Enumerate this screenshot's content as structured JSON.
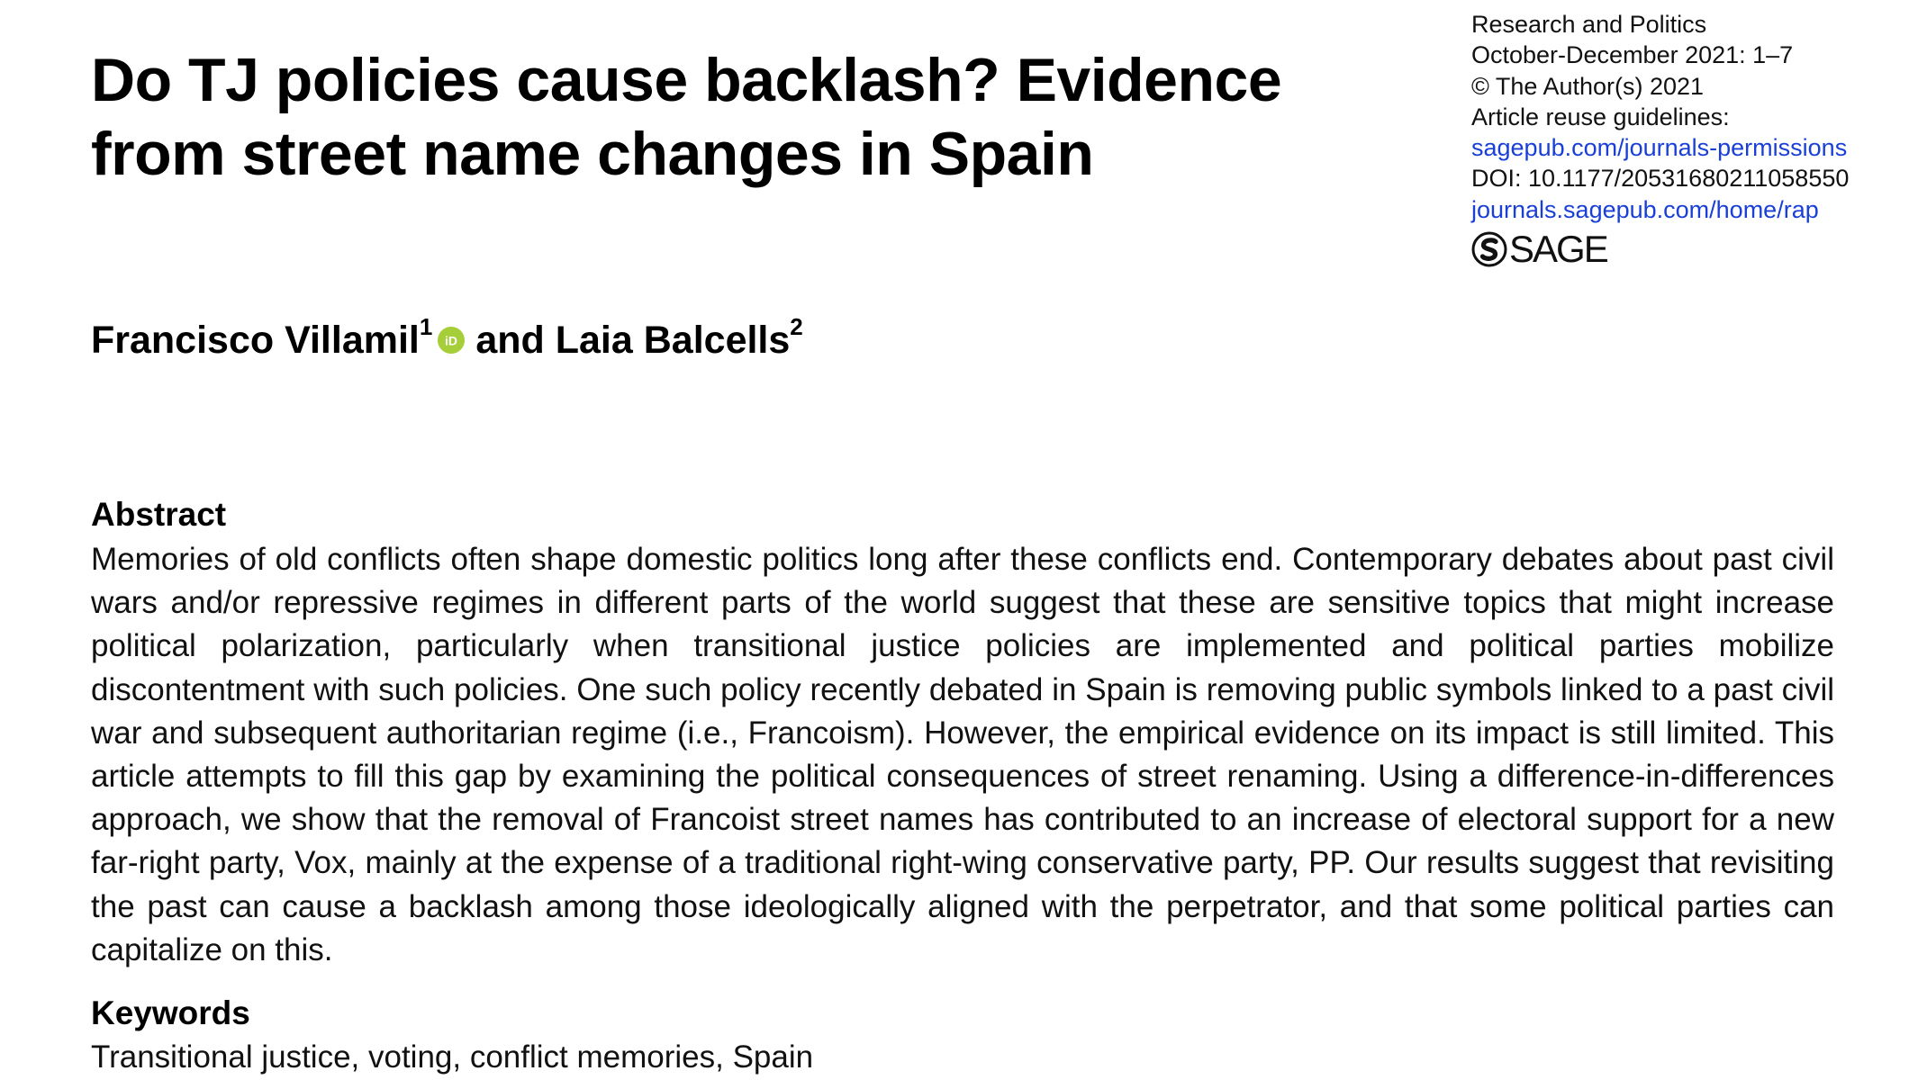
{
  "article": {
    "title": "Do TJ policies cause backlash? Evidence from street name changes in Spain"
  },
  "journal": {
    "name": "Research and Politics",
    "issue": "October-December 2021: 1–7",
    "copyright": "© The Author(s) 2021",
    "reuse_label": "Article reuse guidelines:",
    "permissions_link": "sagepub.com/journals-permissions",
    "doi": "DOI: 10.1177/20531680211058550",
    "home_link": "journals.sagepub.com/home/rap",
    "publisher_logo_text": "SAGE",
    "link_color": "#1a3fd6"
  },
  "authors": {
    "first_name": "Francisco Villamil",
    "first_affiliation": "1",
    "orcid_badge": "iD",
    "orcid_color": "#a6ce39",
    "connector": "and",
    "second_name": "Laia Balcells",
    "second_affiliation": "2"
  },
  "abstract": {
    "heading": "Abstract",
    "text": "Memories of old conflicts often shape domestic politics long after these conflicts end. Contemporary debates about past civil wars and/or repressive regimes in different parts of the world suggest that these are sensitive topics that might increase political polarization, particularly when transitional justice policies are implemented and political parties mobilize discontentment with such policies. One such policy recently debated in Spain is removing public symbols linked to a past civil war and subsequent authoritarian regime (i.e., Francoism). However, the empirical evidence on its impact is still limited. This article attempts to fill this gap by examining the political consequences of street renaming. Using a difference-in-differences approach, we show that the removal of Francoist street names has contributed to an increase of electoral support for a new far-right party, Vox, mainly at the expense of a traditional right-wing conservative party, PP. Our results suggest that revisiting the past can cause a backlash among those ideologically aligned with the perpetrator, and that some political parties can capitalize on this."
  },
  "keywords": {
    "heading": "Keywords",
    "text": "Transitional justice, voting, conflict memories, Spain"
  }
}
